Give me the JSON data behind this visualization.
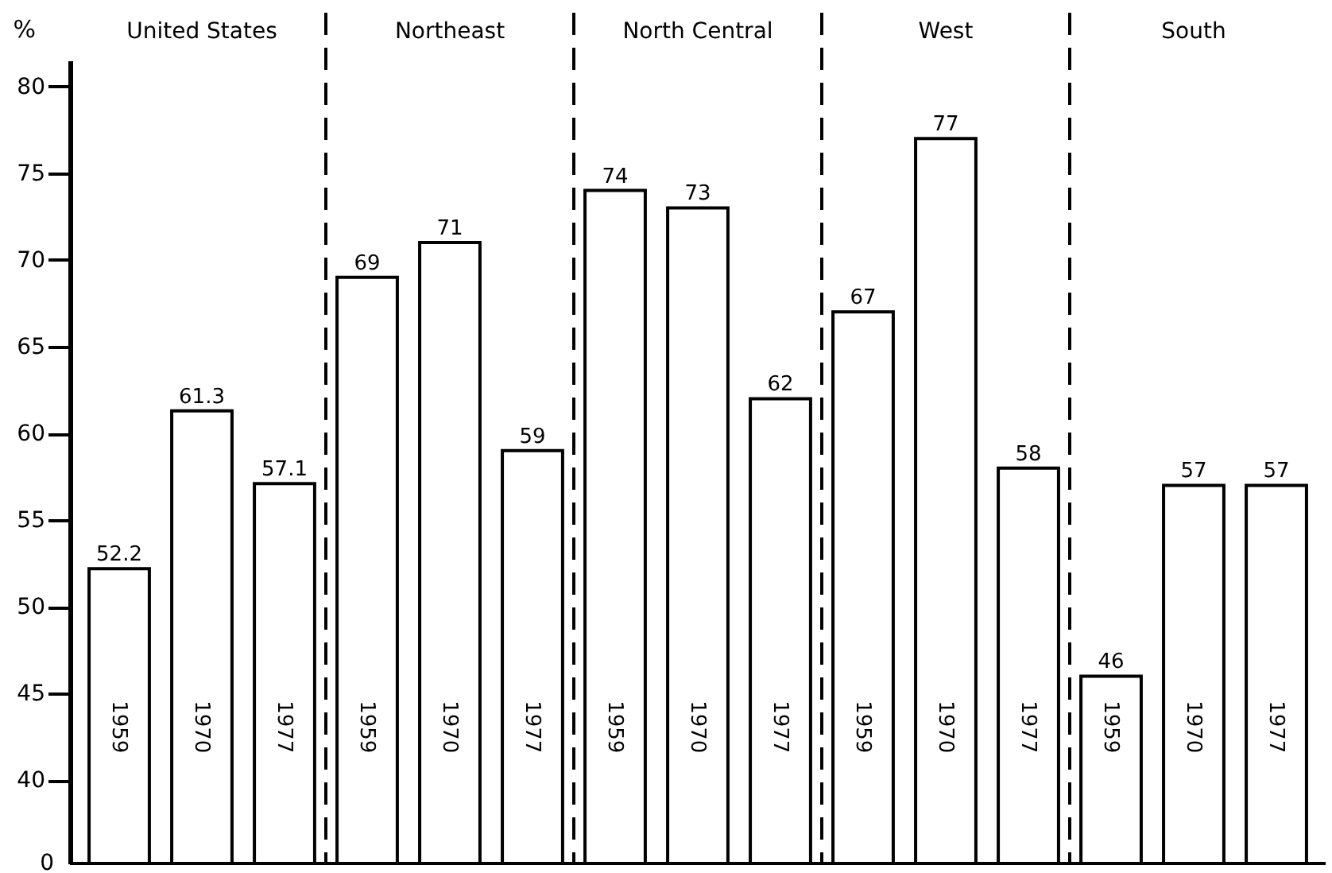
{
  "chart_data": {
    "type": "bar",
    "ylabel": "%",
    "categories": [
      "1959",
      "1970",
      "1977",
      "1959",
      "1970",
      "1977",
      "1959",
      "1970",
      "1977",
      "1959",
      "1970",
      "1977",
      "1959",
      "1970",
      "1977"
    ],
    "series": [
      {
        "color": "#ffffff",
        "values": [
          52.2,
          61.3,
          57.1,
          null,
          null,
          null,
          null,
          null,
          null,
          null,
          null,
          null,
          null,
          null,
          null
        ]
      },
      {
        "color": "#ffffff",
        "values": [
          null,
          null,
          null,
          69,
          71,
          59,
          null,
          null,
          null,
          null,
          null,
          null,
          null,
          null,
          null
        ]
      },
      {
        "color": "#ffffff",
        "values": [
          null,
          null,
          null,
          null,
          null,
          null,
          74,
          73,
          62,
          null,
          null,
          null,
          null,
          null,
          null
        ]
      },
      {
        "color": "#ffffff",
        "values": [
          null,
          null,
          null,
          null,
          null,
          null,
          null,
          null,
          null,
          67,
          77,
          58,
          null,
          null,
          null
        ]
      },
      {
        "color": "#ffffff",
        "values": [
          null,
          null,
          null,
          null,
          null,
          null,
          null,
          null,
          null,
          null,
          null,
          null,
          46,
          57,
          57
        ]
      }
    ],
    "annotations": [
      "United States",
      "Northeast",
      "North Central",
      "West",
      "South",
      "0"
    ],
    "ylim": [
      35.2,
      81.5
    ],
    "yticks": [
      40,
      45,
      50,
      55,
      60,
      65,
      70,
      75,
      80
    ],
    "data_labels": true,
    "grid": false
  }
}
